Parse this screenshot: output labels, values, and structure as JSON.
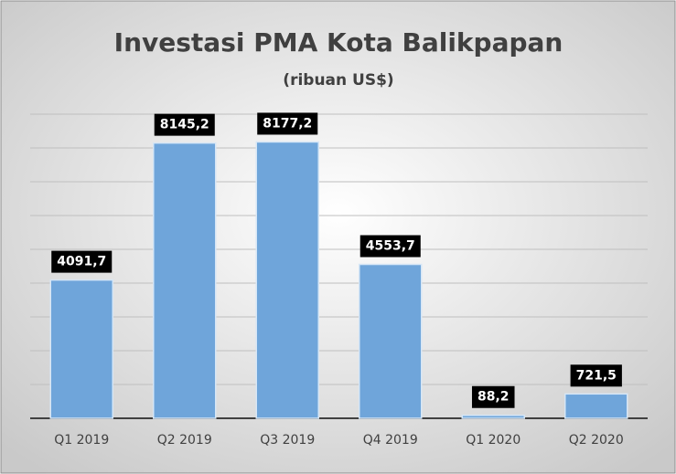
{
  "chart_data": {
    "type": "bar",
    "title": "Investasi PMA Kota Balikpapan",
    "subtitle": "(ribuan US$)",
    "categories": [
      "Q1 2019",
      "Q2 2019",
      "Q3 2019",
      "Q4 2019",
      "Q1 2020",
      "Q2 2020"
    ],
    "values": [
      4091.7,
      8145.2,
      8177.2,
      4553.7,
      88.2,
      721.5
    ],
    "value_labels": [
      "4091,7",
      "8145,2",
      "8177,2",
      "4553,7",
      "88,2",
      "721,5"
    ],
    "color": "#6fa5da",
    "ylim": [
      0,
      9000
    ],
    "yticks": [
      0,
      1000,
      2000,
      3000,
      4000,
      5000,
      6000,
      7000,
      8000,
      9000
    ],
    "grid": true
  }
}
